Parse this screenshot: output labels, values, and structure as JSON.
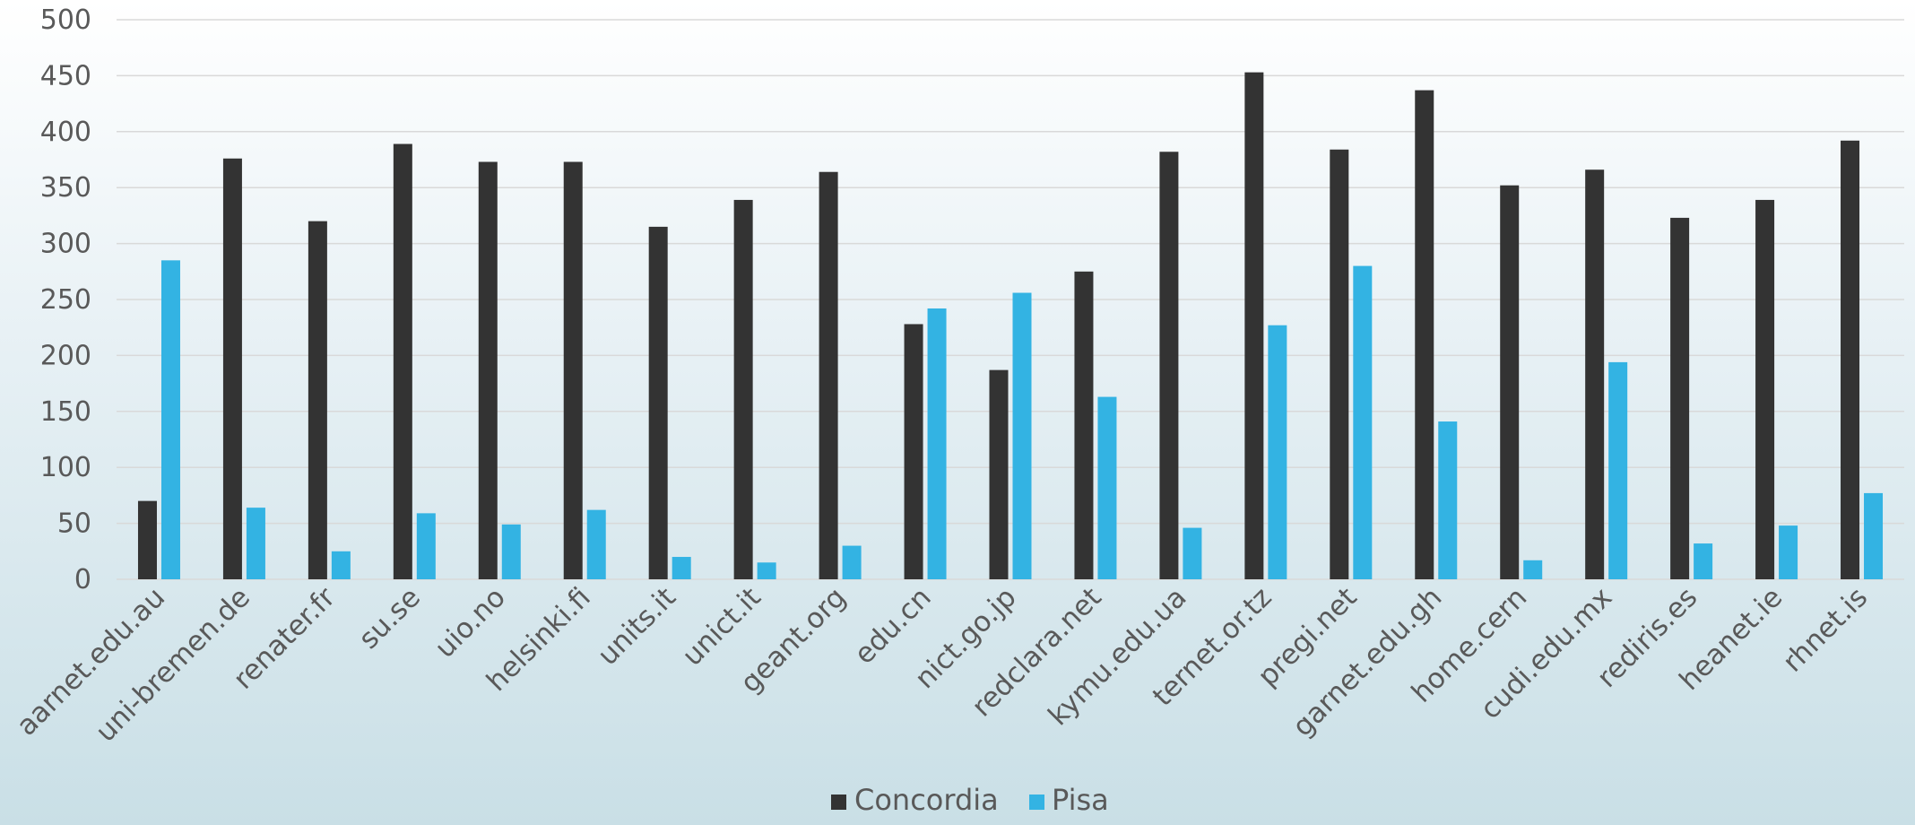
{
  "chart_data": {
    "type": "bar",
    "categories": [
      "aarnet.edu.au",
      "uni-bremen.de",
      "renater.fr",
      "su.se",
      "uio.no",
      "helsinki.fi",
      "units.it",
      "unict.it",
      "geant.org",
      "edu.cn",
      "nict.go.jp",
      "redclara.net",
      "kymu.edu.ua",
      "ternet.or.tz",
      "pregi.net",
      "garnet.edu.gh",
      "home.cern",
      "cudi.edu.mx",
      "rediris.es",
      "heanet.ie",
      "rhnet.is"
    ],
    "series": [
      {
        "name": "Concordia",
        "color": "#333333",
        "values": [
          70,
          376,
          320,
          389,
          373,
          373,
          315,
          339,
          364,
          228,
          187,
          275,
          382,
          453,
          384,
          437,
          352,
          366,
          323,
          339,
          392
        ]
      },
      {
        "name": "Pisa",
        "color": "#33b3e3",
        "values": [
          285,
          64,
          25,
          59,
          49,
          62,
          20,
          15,
          30,
          242,
          256,
          163,
          46,
          227,
          280,
          141,
          17,
          194,
          32,
          48,
          77
        ]
      }
    ],
    "yticks": [
      "0",
      "50",
      "100",
      "150",
      "200",
      "250",
      "300",
      "350",
      "400",
      "450",
      "500"
    ],
    "ylim": [
      0,
      500
    ],
    "title": "",
    "xlabel": "",
    "ylabel": "",
    "grid": true,
    "legend": "bottom-center"
  }
}
